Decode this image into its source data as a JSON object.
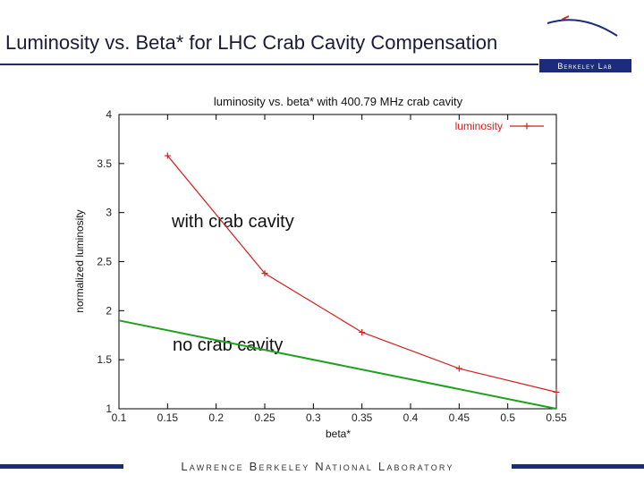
{
  "slide": {
    "title": "Luminosity vs. Beta* for LHC Crab Cavity Compensation",
    "logo": "Berkeley Lab",
    "footer": "Lawrence Berkeley National Laboratory"
  },
  "chart_data": {
    "type": "line",
    "title": "luminosity vs. beta* with 400.79 MHz crab cavity",
    "x_label": "beta*",
    "y_label": "normalized luminosity",
    "annotations": [
      "with crab cavity",
      "no crab cavity"
    ],
    "series": [
      {
        "name": "luminosity",
        "color": "#d42020",
        "x": [
          0.15,
          0.25,
          0.35,
          0.45,
          0.55
        ],
        "values": [
          3.58,
          2.38,
          1.78,
          1.41,
          1.17
        ],
        "markers": true
      },
      {
        "color": "#1fa01f",
        "x": [
          0.1,
          0.55
        ],
        "values": [
          1.9,
          1.0
        ],
        "markers": false
      }
    ],
    "xlim": [
      0.1,
      0.55
    ],
    "xticks": [
      0.1,
      0.15,
      0.2,
      0.25,
      0.3,
      0.35,
      0.4,
      0.45,
      0.5,
      0.55
    ],
    "ylim": [
      1,
      4
    ],
    "yticks": [
      1,
      1.5,
      2,
      2.5,
      3,
      3.5,
      4
    ],
    "grid": false,
    "legend": "top-right"
  }
}
